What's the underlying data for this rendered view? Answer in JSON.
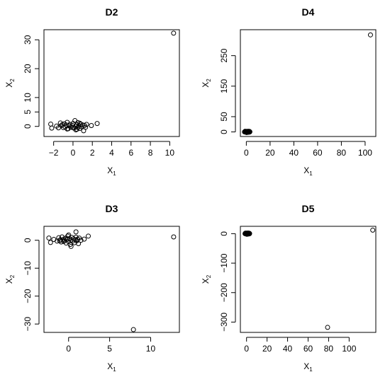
{
  "chart_data": [
    {
      "type": "scatter",
      "title": "D2",
      "xlabel": "X",
      "xlabel_sub": "1",
      "ylabel": "X",
      "ylabel_sub": "2",
      "xlim": [
        -3.0,
        11.0
      ],
      "ylim": [
        -3.5,
        33.5
      ],
      "xticks": [
        -2,
        0,
        2,
        4,
        6,
        8,
        10
      ],
      "yticks": [
        0,
        5,
        10,
        20,
        30
      ],
      "series": [
        {
          "marker": "open-circle",
          "color": "#000000",
          "points": [
            [
              -2.3,
              0.8
            ],
            [
              -2.2,
              -0.6
            ],
            [
              -1.7,
              0.1
            ],
            [
              -1.5,
              -0.5
            ],
            [
              -1.3,
              1.2
            ],
            [
              -1.2,
              0.3
            ],
            [
              -1.0,
              -0.4
            ],
            [
              -0.9,
              0.9
            ],
            [
              -0.8,
              -0.2
            ],
            [
              -0.7,
              0.5
            ],
            [
              -0.6,
              1.4
            ],
            [
              -0.5,
              -0.8
            ],
            [
              -0.4,
              0.2
            ],
            [
              -0.3,
              0.7
            ],
            [
              -0.2,
              -0.3
            ],
            [
              -0.1,
              0.4
            ],
            [
              0.0,
              1.0
            ],
            [
              0.1,
              -0.6
            ],
            [
              0.2,
              2.0
            ],
            [
              0.3,
              0.0
            ],
            [
              0.3,
              -1.2
            ],
            [
              0.4,
              0.6
            ],
            [
              0.5,
              -0.4
            ],
            [
              0.5,
              1.3
            ],
            [
              0.6,
              0.2
            ],
            [
              0.7,
              -0.7
            ],
            [
              0.8,
              0.8
            ],
            [
              0.9,
              -0.1
            ],
            [
              1.0,
              0.5
            ],
            [
              1.1,
              -1.5
            ],
            [
              1.2,
              0.3
            ],
            [
              1.3,
              -0.3
            ],
            [
              1.4,
              0.7
            ],
            [
              1.9,
              0.3
            ],
            [
              2.5,
              1.0
            ],
            [
              -0.6,
              -0.9
            ],
            [
              0.0,
              -0.4
            ],
            [
              0.7,
              1.1
            ],
            [
              -1.1,
              0.6
            ],
            [
              0.4,
              -1.0
            ],
            [
              10.4,
              32.3
            ]
          ]
        }
      ]
    },
    {
      "type": "scatter",
      "title": "D4",
      "xlabel": "X",
      "xlabel_sub": "1",
      "ylabel": "X",
      "ylabel_sub": "2",
      "xlim": [
        -5,
        109
      ],
      "ylim": [
        -15,
        335
      ],
      "xticks": [
        0,
        20,
        40,
        60,
        80,
        100
      ],
      "yticks": [
        0,
        50,
        150,
        250
      ],
      "series": [
        {
          "marker": "open-circle",
          "color": "#000000",
          "points": [
            [
              -1.2,
              0.8
            ],
            [
              -0.8,
              -0.5
            ],
            [
              -0.5,
              1.2
            ],
            [
              -0.3,
              -1.0
            ],
            [
              0.0,
              0.3
            ],
            [
              0.2,
              1.8
            ],
            [
              0.4,
              -1.6
            ],
            [
              0.6,
              0.6
            ],
            [
              0.8,
              -0.3
            ],
            [
              1.0,
              1.1
            ],
            [
              1.2,
              -0.9
            ],
            [
              1.4,
              0.2
            ],
            [
              1.6,
              1.5
            ],
            [
              1.8,
              -1.2
            ],
            [
              2.0,
              0.5
            ],
            [
              2.2,
              -0.2
            ],
            [
              2.4,
              1.0
            ],
            [
              2.7,
              -0.6
            ],
            [
              3.0,
              0.4
            ],
            [
              -1.5,
              0.0
            ],
            [
              -1.0,
              2.0
            ],
            [
              0.3,
              -2.0
            ],
            [
              1.5,
              2.2
            ],
            [
              2.6,
              1.7
            ],
            [
              -0.4,
              0.0
            ],
            [
              104.5,
              318.0
            ]
          ]
        }
      ]
    },
    {
      "type": "scatter",
      "title": "D3",
      "xlabel": "X",
      "xlabel_sub": "1",
      "ylabel": "X",
      "ylabel_sub": "2",
      "xlim": [
        -3.0,
        13.5
      ],
      "ylim": [
        -33.0,
        5.0
      ],
      "xticks": [
        0,
        5,
        10
      ],
      "yticks": [
        0,
        -10,
        -20,
        -30
      ],
      "series": [
        {
          "marker": "open-circle",
          "color": "#000000",
          "points": [
            [
              -2.4,
              0.8
            ],
            [
              -2.2,
              -0.8
            ],
            [
              -1.8,
              0.3
            ],
            [
              -1.4,
              -0.3
            ],
            [
              -1.2,
              0.9
            ],
            [
              -1.0,
              0.2
            ],
            [
              -0.9,
              -0.6
            ],
            [
              -0.8,
              1.2
            ],
            [
              -0.6,
              0.4
            ],
            [
              -0.5,
              -0.2
            ],
            [
              -0.4,
              0.7
            ],
            [
              -0.3,
              -1.0
            ],
            [
              -0.2,
              0.3
            ],
            [
              -0.1,
              1.5
            ],
            [
              0.0,
              -0.5
            ],
            [
              0.1,
              0.6
            ],
            [
              0.2,
              -1.5
            ],
            [
              0.3,
              0.1
            ],
            [
              0.4,
              1.0
            ],
            [
              0.5,
              -0.3
            ],
            [
              0.6,
              0.5
            ],
            [
              0.7,
              -0.9
            ],
            [
              0.8,
              0.2
            ],
            [
              0.9,
              1.1
            ],
            [
              1.0,
              -0.2
            ],
            [
              1.1,
              0.4
            ],
            [
              1.2,
              -1.2
            ],
            [
              1.3,
              0.8
            ],
            [
              1.5,
              0.0
            ],
            [
              0.9,
              3.0
            ],
            [
              0.3,
              -2.2
            ],
            [
              1.9,
              0.4
            ],
            [
              2.4,
              1.5
            ],
            [
              -0.6,
              -0.4
            ],
            [
              0.0,
              1.9
            ],
            [
              -1.1,
              -0.1
            ],
            [
              12.8,
              1.2
            ],
            [
              7.9,
              -32.0
            ]
          ]
        }
      ]
    },
    {
      "type": "scatter",
      "title": "D5",
      "xlabel": "X",
      "xlabel_sub": "1",
      "ylabel": "X",
      "ylabel_sub": "2",
      "xlim": [
        -6,
        126
      ],
      "ylim": [
        -335,
        25
      ],
      "xticks": [
        0,
        20,
        40,
        60,
        80,
        100
      ],
      "yticks": [
        0,
        -100,
        -200,
        -300
      ],
      "series": [
        {
          "marker": "open-circle",
          "color": "#000000",
          "points": [
            [
              -1.2,
              0.8
            ],
            [
              -0.8,
              -0.5
            ],
            [
              -0.5,
              1.2
            ],
            [
              -0.3,
              -1.0
            ],
            [
              0.0,
              0.3
            ],
            [
              0.2,
              1.8
            ],
            [
              0.4,
              -1.6
            ],
            [
              0.6,
              0.6
            ],
            [
              0.8,
              -0.3
            ],
            [
              1.0,
              1.1
            ],
            [
              1.2,
              -0.9
            ],
            [
              1.4,
              0.2
            ],
            [
              1.6,
              1.5
            ],
            [
              1.8,
              -1.2
            ],
            [
              2.0,
              0.5
            ],
            [
              2.2,
              -0.2
            ],
            [
              2.4,
              1.0
            ],
            [
              2.7,
              -0.6
            ],
            [
              3.0,
              0.4
            ],
            [
              -1.5,
              0.0
            ],
            [
              -1.0,
              2.0
            ],
            [
              0.3,
              -2.0
            ],
            [
              1.5,
              2.2
            ],
            [
              2.6,
              1.7
            ],
            [
              -0.4,
              0.0
            ],
            [
              123.0,
              12.0
            ],
            [
              79.0,
              -318.0
            ]
          ]
        }
      ]
    }
  ]
}
